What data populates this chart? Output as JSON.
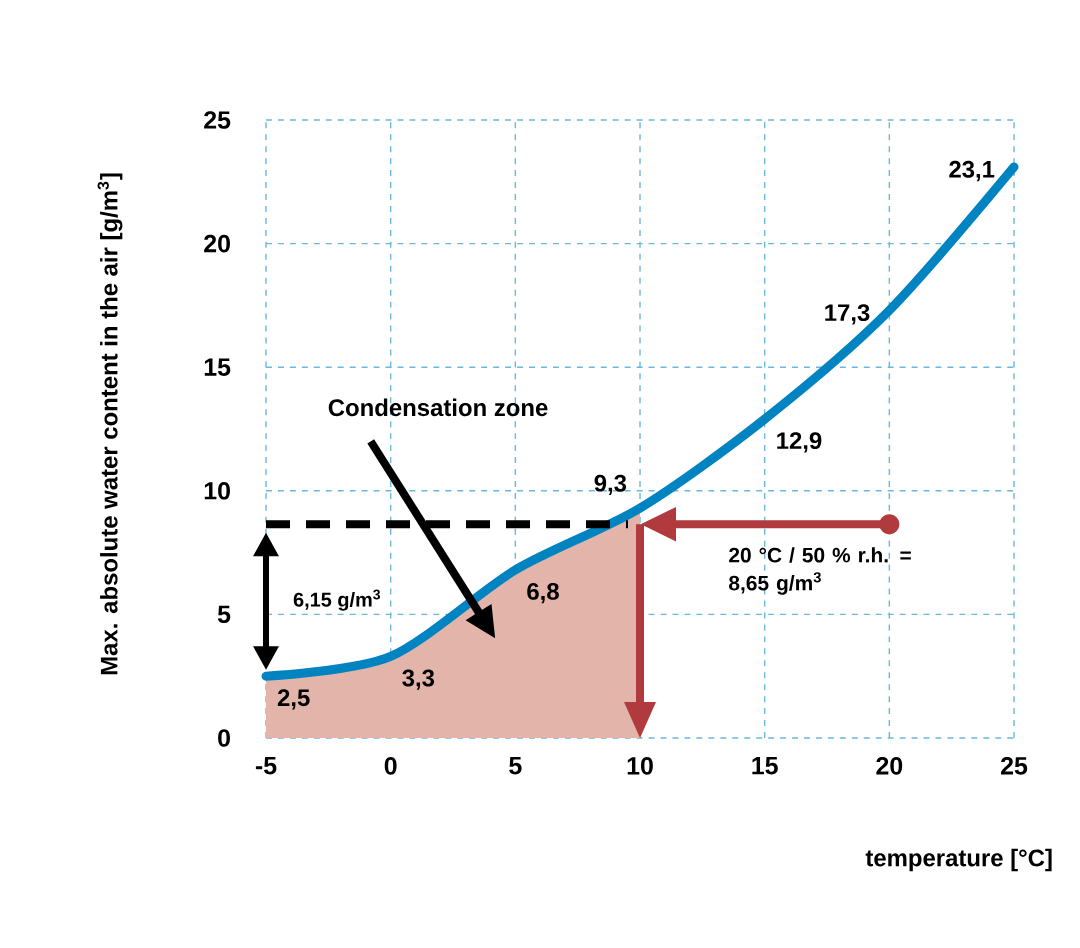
{
  "chart_data": {
    "type": "line",
    "xlabel": "temperature [°C]",
    "ylabel": "Max. absolute water content in the air [g/m$^{3}$]",
    "xlim": [
      -5,
      25
    ],
    "ylim": [
      0,
      25
    ],
    "xticks": [
      -5,
      0,
      5,
      10,
      15,
      20,
      25
    ],
    "yticks": [
      0,
      5,
      10,
      15,
      20,
      25
    ],
    "grid": true,
    "series": [
      {
        "type": "area",
        "color": "#e2b4aa",
        "x": [
          -5,
          0,
          5,
          10
        ],
        "values": [
          2.5,
          3.3,
          6.8,
          9.3
        ]
      },
      {
        "color": "#0083c1",
        "x": [
          -5,
          0,
          5,
          10,
          15,
          20,
          25
        ],
        "values": [
          2.5,
          3.3,
          6.8,
          9.3,
          12.9,
          17.3,
          23.1
        ],
        "value_labels": [
          "2,5",
          "3,3",
          "6,8",
          "9,3",
          "12,9",
          "17,3",
          "23,1"
        ]
      }
    ],
    "ref_lines": [
      {
        "axis": "y",
        "value": 8.65,
        "line_style": "dashed",
        "color": "#000000"
      },
      {
        "axis": "x",
        "value": 10,
        "color": "#b03a3e"
      }
    ],
    "annotations": [
      "Condensation zone",
      "6,15 g/m$^{3}$",
      {
        "text": "20 °C / 50 % r.h. = 8,65 g/m$^{3}$",
        "x": 20,
        "y": 8.65
      }
    ]
  }
}
